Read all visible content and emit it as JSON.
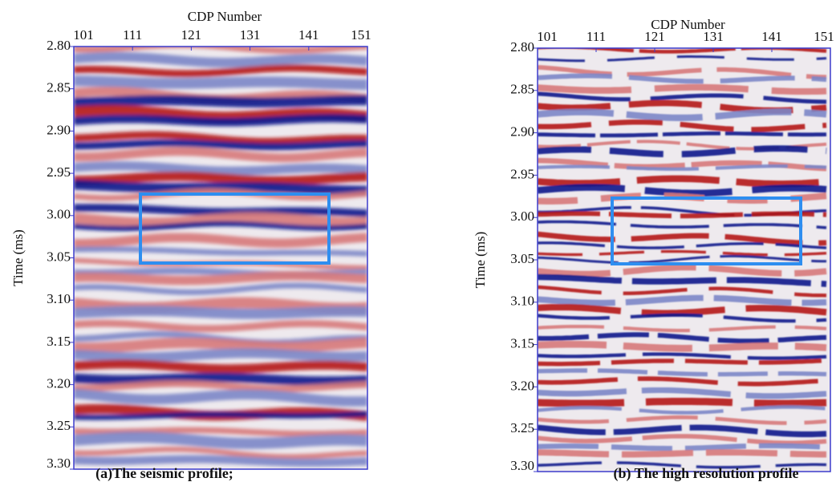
{
  "panels": [
    {
      "x_label": "CDP Number",
      "y_label": "Time (ms)",
      "x_ticks": [
        "101",
        "111",
        "121",
        "131",
        "141",
        "151"
      ],
      "y_ticks": [
        "2.80",
        "2.85",
        "2.90",
        "2.95",
        "3.00",
        "3.05",
        "3.10",
        "3.15",
        "3.20",
        "3.25",
        "3.30"
      ],
      "caption": "(a)The seismic profile;"
    },
    {
      "x_label": "CDP Number",
      "y_label": "Time (ms)",
      "x_ticks": [
        "101",
        "111",
        "121",
        "131",
        "141",
        "151"
      ],
      "y_ticks": [
        "2.80",
        "2.85",
        "2.90",
        "2.95",
        "3.00",
        "3.05",
        "3.10",
        "3.15",
        "3.20",
        "3.25",
        "3.30"
      ],
      "caption": "(b) The high resolution profile"
    }
  ]
}
